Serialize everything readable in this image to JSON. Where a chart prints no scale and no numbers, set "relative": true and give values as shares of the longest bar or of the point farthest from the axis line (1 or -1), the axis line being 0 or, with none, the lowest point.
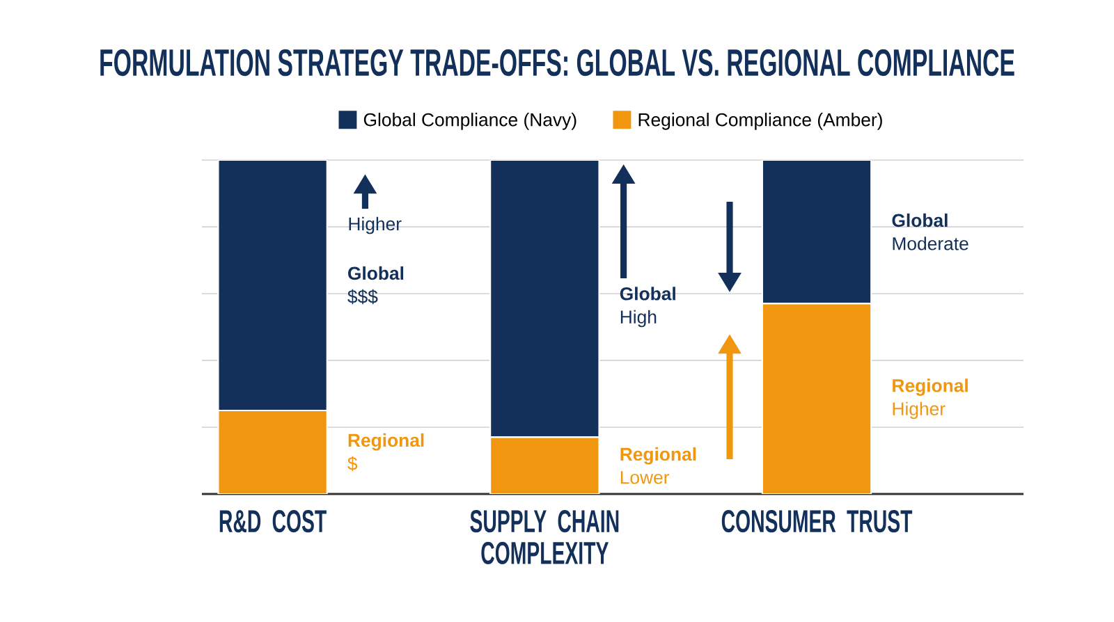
{
  "chart_data": {
    "type": "bar",
    "title": "FORMULATION STRATEGY TRADE-OFFS: GLOBAL VS. REGIONAL COMPLIANCE",
    "categories": [
      "R&D COST",
      "SUPPLY CHAIN COMPLEXITY",
      "CONSUMER TRUST"
    ],
    "stacked": true,
    "relative": true,
    "grid": "y",
    "legend": "top",
    "series": [
      {
        "name": "Regional Compliance (Amber)",
        "color": "#f0960f",
        "values": [
          0.25,
          0.17,
          0.57
        ]
      },
      {
        "name": "Global Compliance (Navy)",
        "color": "#12305a",
        "values": [
          0.75,
          0.83,
          0.43
        ]
      }
    ],
    "annotations": [
      "Higher",
      "**Global** $$$",
      "**Regional** $",
      "**Global** High",
      "**Regional** Lower",
      "**Global** Moderate",
      "**Regional** Higher"
    ]
  }
}
